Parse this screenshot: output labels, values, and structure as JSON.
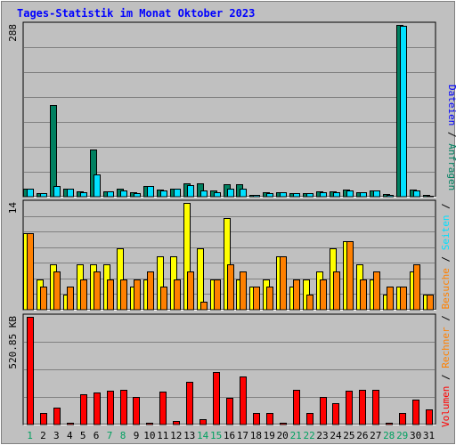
{
  "title": "Tages-Statistik im Monat Oktober 2023",
  "colors": {
    "title": "#0000ff",
    "background": "#c0c0c0",
    "anfragen": "#008060",
    "dateien": "#00e0ff",
    "seiten": "#ffff00",
    "besuche": "#ff8000",
    "rechner": "#ff8000",
    "volumen": "#ff0000",
    "weekday": "#008040",
    "weekend": "#00a060",
    "axis_text": "#000000",
    "grid": "#808080"
  },
  "chart_data": [
    {
      "type": "bar",
      "title": "Tages-Statistik im Monat Oktober 2023",
      "panel": "top",
      "y_max_label": "288",
      "ylim": [
        0,
        288
      ],
      "categories": [
        "1",
        "2",
        "3",
        "4",
        "5",
        "6",
        "7",
        "8",
        "9",
        "10",
        "11",
        "12",
        "13",
        "14",
        "15",
        "16",
        "17",
        "18",
        "19",
        "20",
        "21",
        "22",
        "23",
        "24",
        "25",
        "26",
        "27",
        "28",
        "29",
        "30",
        "31"
      ],
      "series": [
        {
          "name": "Anfragen",
          "color": "#008060",
          "values": [
            14,
            6,
            153,
            13,
            9,
            79,
            9,
            13,
            8,
            18,
            12,
            14,
            23,
            23,
            11,
            21,
            21,
            3,
            8,
            8,
            6,
            6,
            9,
            9,
            12,
            8,
            10,
            4,
            288,
            12,
            3
          ]
        },
        {
          "name": "Dateien",
          "color": "#00e0ff",
          "values": [
            14,
            6,
            18,
            13,
            8,
            37,
            9,
            11,
            6,
            18,
            11,
            14,
            20,
            11,
            7,
            13,
            13,
            3,
            6,
            7,
            6,
            6,
            8,
            8,
            10,
            8,
            10,
            3,
            286,
            11,
            2
          ]
        }
      ]
    },
    {
      "type": "bar",
      "panel": "middle",
      "y_max_label": "14",
      "ylim": [
        0,
        14
      ],
      "categories": [
        "1",
        "2",
        "3",
        "4",
        "5",
        "6",
        "7",
        "8",
        "9",
        "10",
        "11",
        "12",
        "13",
        "14",
        "15",
        "16",
        "17",
        "18",
        "19",
        "20",
        "21",
        "22",
        "23",
        "24",
        "25",
        "26",
        "27",
        "28",
        "29",
        "30",
        "31"
      ],
      "series": [
        {
          "name": "Seiten",
          "color": "#ffff00",
          "values": [
            10,
            4,
            6,
            2,
            6,
            6,
            6,
            8,
            3,
            4,
            7,
            7,
            14,
            8,
            4,
            12,
            4,
            3,
            4,
            7,
            3,
            4,
            5,
            8,
            9,
            6,
            4,
            2,
            3,
            5,
            2
          ]
        },
        {
          "name": "Besuche",
          "color": "#ff8000",
          "values": [
            10,
            3,
            5,
            3,
            4,
            5,
            4,
            4,
            4,
            5,
            3,
            4,
            5,
            1,
            4,
            6,
            5,
            3,
            3,
            7,
            4,
            2,
            4,
            5,
            9,
            4,
            5,
            3,
            3,
            6,
            2
          ]
        }
      ]
    },
    {
      "type": "bar",
      "panel": "bottom",
      "y_max_label": "520.85 KB",
      "ylim": [
        0,
        520.85
      ],
      "categories": [
        "1",
        "2",
        "3",
        "4",
        "5",
        "6",
        "7",
        "8",
        "9",
        "10",
        "11",
        "12",
        "13",
        "14",
        "15",
        "16",
        "17",
        "18",
        "19",
        "20",
        "21",
        "22",
        "23",
        "24",
        "25",
        "26",
        "27",
        "28",
        "29",
        "30",
        "31"
      ],
      "series": [
        {
          "name": "Volumen",
          "color": "#ff0000",
          "values": [
            520.85,
            58,
            82,
            8,
            148,
            155,
            165,
            170,
            133,
            8,
            160,
            17,
            206,
            26,
            256,
            128,
            234,
            58,
            58,
            8,
            170,
            58,
            133,
            104,
            165,
            170,
            170,
            8,
            58,
            122,
            75
          ]
        }
      ]
    }
  ],
  "x_labels": [
    "1",
    "2",
    "3",
    "4",
    "5",
    "6",
    "7",
    "8",
    "9",
    "10",
    "11",
    "12",
    "13",
    "14",
    "15",
    "16",
    "17",
    "18",
    "19",
    "20",
    "21",
    "22",
    "23",
    "24",
    "25",
    "26",
    "27",
    "28",
    "29",
    "30",
    "31"
  ],
  "weekend_days": [
    "1",
    "7",
    "8",
    "14",
    "15",
    "21",
    "22",
    "28",
    "29"
  ],
  "right_legend": {
    "top": [
      {
        "text": "Dateien",
        "color": "#0000ff"
      },
      {
        "text": " / ",
        "color": "#000000"
      },
      {
        "text": "Anfragen",
        "color": "#008060"
      }
    ],
    "bottom": [
      {
        "text": "Volumen",
        "color": "#ff0000"
      },
      {
        "text": " / ",
        "color": "#000000"
      },
      {
        "text": "Rechner",
        "color": "#ff8000"
      },
      {
        "text": " / ",
        "color": "#000000"
      },
      {
        "text": "Besuche",
        "color": "#ff8000"
      },
      {
        "text": " / ",
        "color": "#000000"
      },
      {
        "text": "Seiten",
        "color": "#00e0ff"
      },
      {
        "text": " / ",
        "color": "#000000"
      }
    ]
  }
}
